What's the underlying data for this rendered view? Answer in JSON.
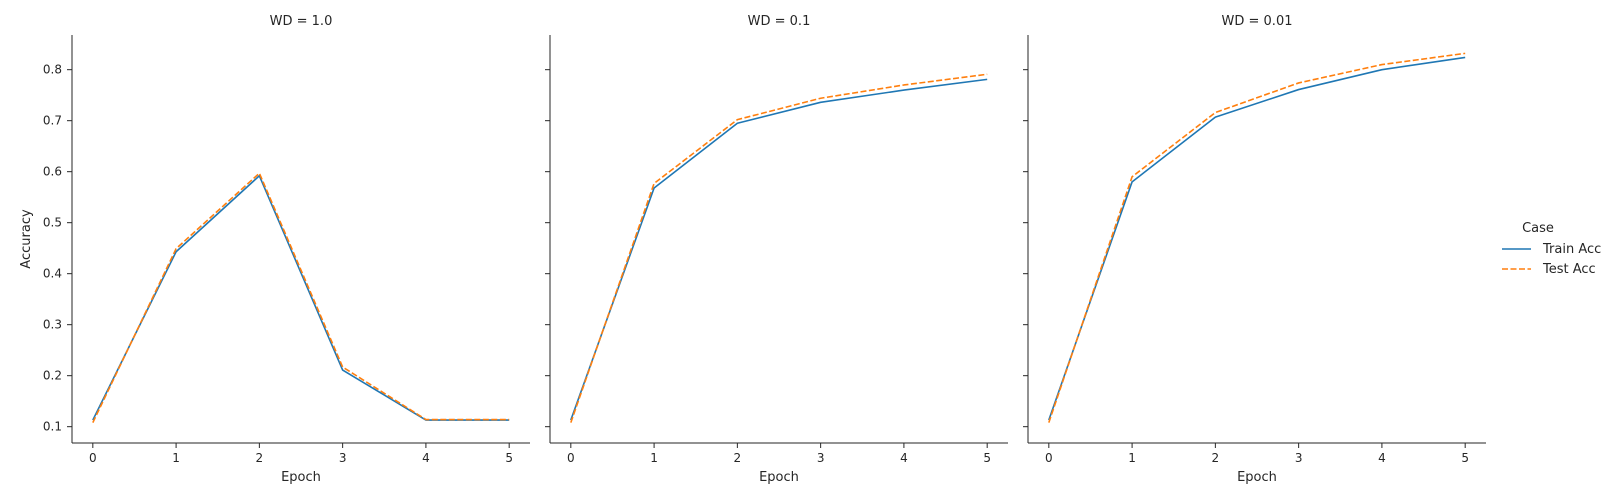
{
  "chart_data": [
    {
      "type": "line",
      "title": "WD = 1.0",
      "xlabel": "Epoch",
      "ylabel": "Accuracy",
      "x": [
        0,
        1,
        2,
        3,
        4,
        5
      ],
      "xticks": [
        "0",
        "1",
        "2",
        "3",
        "4",
        "5"
      ],
      "yticks": [
        "0.1",
        "0.2",
        "0.3",
        "0.4",
        "0.5",
        "0.6",
        "0.7",
        "0.8"
      ],
      "xlim": [
        -0.25,
        5.25
      ],
      "ylim": [
        0.068,
        0.868
      ],
      "series": [
        {
          "name": "Train Acc",
          "values": [
            0.113,
            0.443,
            0.592,
            0.211,
            0.113,
            0.113
          ]
        },
        {
          "name": "Test Acc",
          "values": [
            0.108,
            0.449,
            0.597,
            0.217,
            0.114,
            0.114
          ]
        }
      ]
    },
    {
      "type": "line",
      "title": "WD = 0.1",
      "xlabel": "Epoch",
      "ylabel": "",
      "x": [
        0,
        1,
        2,
        3,
        4,
        5
      ],
      "xticks": [
        "0",
        "1",
        "2",
        "3",
        "4",
        "5"
      ],
      "yticks": [],
      "xlim": [
        -0.25,
        5.25
      ],
      "ylim": [
        0.068,
        0.868
      ],
      "series": [
        {
          "name": "Train Acc",
          "values": [
            0.113,
            0.568,
            0.695,
            0.736,
            0.76,
            0.781
          ]
        },
        {
          "name": "Test Acc",
          "values": [
            0.108,
            0.577,
            0.702,
            0.744,
            0.77,
            0.791
          ]
        }
      ]
    },
    {
      "type": "line",
      "title": "WD = 0.01",
      "xlabel": "Epoch",
      "ylabel": "",
      "x": [
        0,
        1,
        2,
        3,
        4,
        5
      ],
      "xticks": [
        "0",
        "1",
        "2",
        "3",
        "4",
        "5"
      ],
      "yticks": [],
      "xlim": [
        -0.25,
        5.25
      ],
      "ylim": [
        0.068,
        0.868
      ],
      "series": [
        {
          "name": "Train Acc",
          "values": [
            0.113,
            0.58,
            0.707,
            0.761,
            0.8,
            0.824
          ]
        },
        {
          "name": "Test Acc",
          "values": [
            0.108,
            0.59,
            0.716,
            0.774,
            0.81,
            0.832
          ]
        }
      ]
    }
  ],
  "legend": {
    "title": "Case",
    "placement": "right",
    "items": [
      {
        "label": "Train Acc",
        "color": "#1f77b4",
        "dash": "solid"
      },
      {
        "label": "Test Acc",
        "color": "#ff7f0e",
        "dash": "dashed"
      }
    ]
  },
  "colors": {
    "Train Acc": "#1f77b4",
    "Test Acc": "#ff7f0e",
    "axis": "#262626"
  }
}
